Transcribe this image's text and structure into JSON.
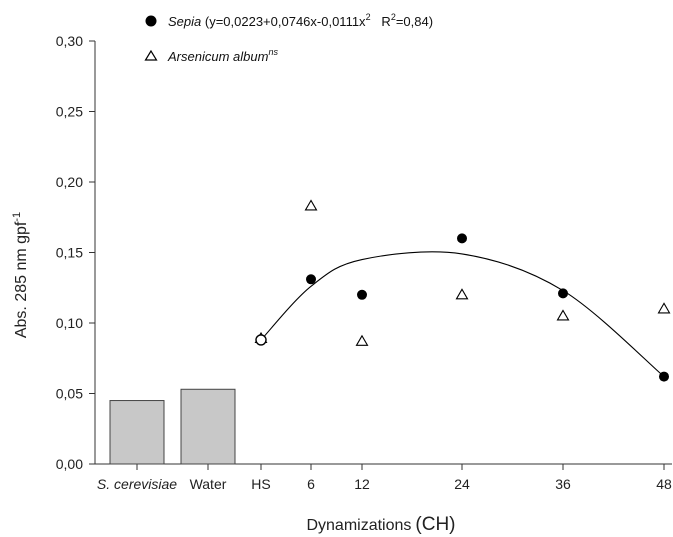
{
  "chart_data": {
    "type": "scatter",
    "xlabel_main": "Dynamizations",
    "xlabel_unit": "(CH)",
    "ylabel": "Abs. 285 nm gpf",
    "ylabel_superscript": "-1",
    "ylim": [
      0,
      0.3
    ],
    "yticks": [
      "0,00",
      "0,05",
      "0,10",
      "0,15",
      "0,20",
      "0,25",
      "0,30"
    ],
    "grid": false,
    "legend_position": "top-center",
    "categories": [
      "S. cerevisiae",
      "Water",
      "HS",
      "6",
      "12",
      "24",
      "36",
      "48"
    ],
    "bars": [
      {
        "category": "S. cerevisiae",
        "value": 0.045
      },
      {
        "category": "Water",
        "value": 0.053
      }
    ],
    "series": [
      {
        "name": "Sepia",
        "equation": " (y=0,0223+0,0746x-0,0111x",
        "equation_sup": "2",
        "r2_prefix": "   R",
        "r2_sup": "2",
        "r2_value": "=0,84)",
        "marker": "filled-circle",
        "points": [
          {
            "x": "HS",
            "y": 0.088
          },
          {
            "x": "6",
            "y": 0.131
          },
          {
            "x": "12",
            "y": 0.12
          },
          {
            "x": "24",
            "y": 0.16
          },
          {
            "x": "36",
            "y": 0.121
          },
          {
            "x": "48",
            "y": 0.062
          }
        ]
      },
      {
        "name": "Arsenicum album",
        "name_sup": "ns",
        "marker": "open-triangle",
        "points": [
          {
            "x": "HS",
            "y": 0.089
          },
          {
            "x": "6",
            "y": 0.183
          },
          {
            "x": "12",
            "y": 0.087
          },
          {
            "x": "24",
            "y": 0.12
          },
          {
            "x": "36",
            "y": 0.105
          },
          {
            "x": "48",
            "y": 0.11
          }
        ]
      }
    ],
    "fit_curve": {
      "series": "Sepia",
      "points": [
        {
          "x": "HS",
          "y": 0.088
        },
        {
          "x": "6",
          "y": 0.126
        },
        {
          "x": "12",
          "y": 0.145
        },
        {
          "x": "24",
          "y": 0.149
        },
        {
          "x": "36",
          "y": 0.123
        },
        {
          "x": "48",
          "y": 0.062
        }
      ]
    },
    "colors": {
      "bar_fill": "#c8c8c8",
      "bar_stroke": "#444444",
      "marker": "#000000",
      "axis": "#333333"
    }
  }
}
